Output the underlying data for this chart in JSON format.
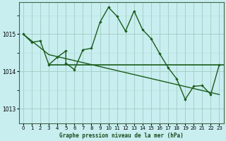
{
  "title": "Graphe pression niveau de la mer (hPa)",
  "bg_color": "#c8eef0",
  "grid_major_color": "#a0ccc0",
  "grid_minor_color": "#b8ddd8",
  "line_color": "#1a5c1a",
  "xlim": [
    -0.5,
    23.5
  ],
  "ylim": [
    1012.6,
    1015.85
  ],
  "yticks": [
    1013,
    1014,
    1015
  ],
  "xticks": [
    0,
    1,
    2,
    3,
    4,
    5,
    6,
    7,
    8,
    9,
    10,
    11,
    12,
    13,
    14,
    15,
    16,
    17,
    18,
    19,
    20,
    21,
    22,
    23
  ],
  "series1_x": [
    0,
    1,
    2,
    3,
    4,
    5,
    5,
    6,
    7,
    8,
    9,
    10,
    11,
    12,
    13,
    14,
    15,
    16,
    17,
    18,
    19,
    20,
    21,
    22,
    23
  ],
  "series1_y": [
    1015.0,
    1014.78,
    1014.82,
    1014.18,
    1014.38,
    1014.55,
    1014.22,
    1014.05,
    1014.58,
    1014.62,
    1015.32,
    1015.72,
    1015.48,
    1015.08,
    1015.62,
    1015.12,
    1014.88,
    1014.48,
    1014.1,
    1013.8,
    1013.25,
    1013.6,
    1013.62,
    1013.38,
    1014.18
  ],
  "series2_x": [
    0,
    3,
    23
  ],
  "series2_y": [
    1015.0,
    1014.45,
    1013.38
  ],
  "hline_y": 1014.18,
  "hline_xmin": 3,
  "hline_xmax": 23
}
